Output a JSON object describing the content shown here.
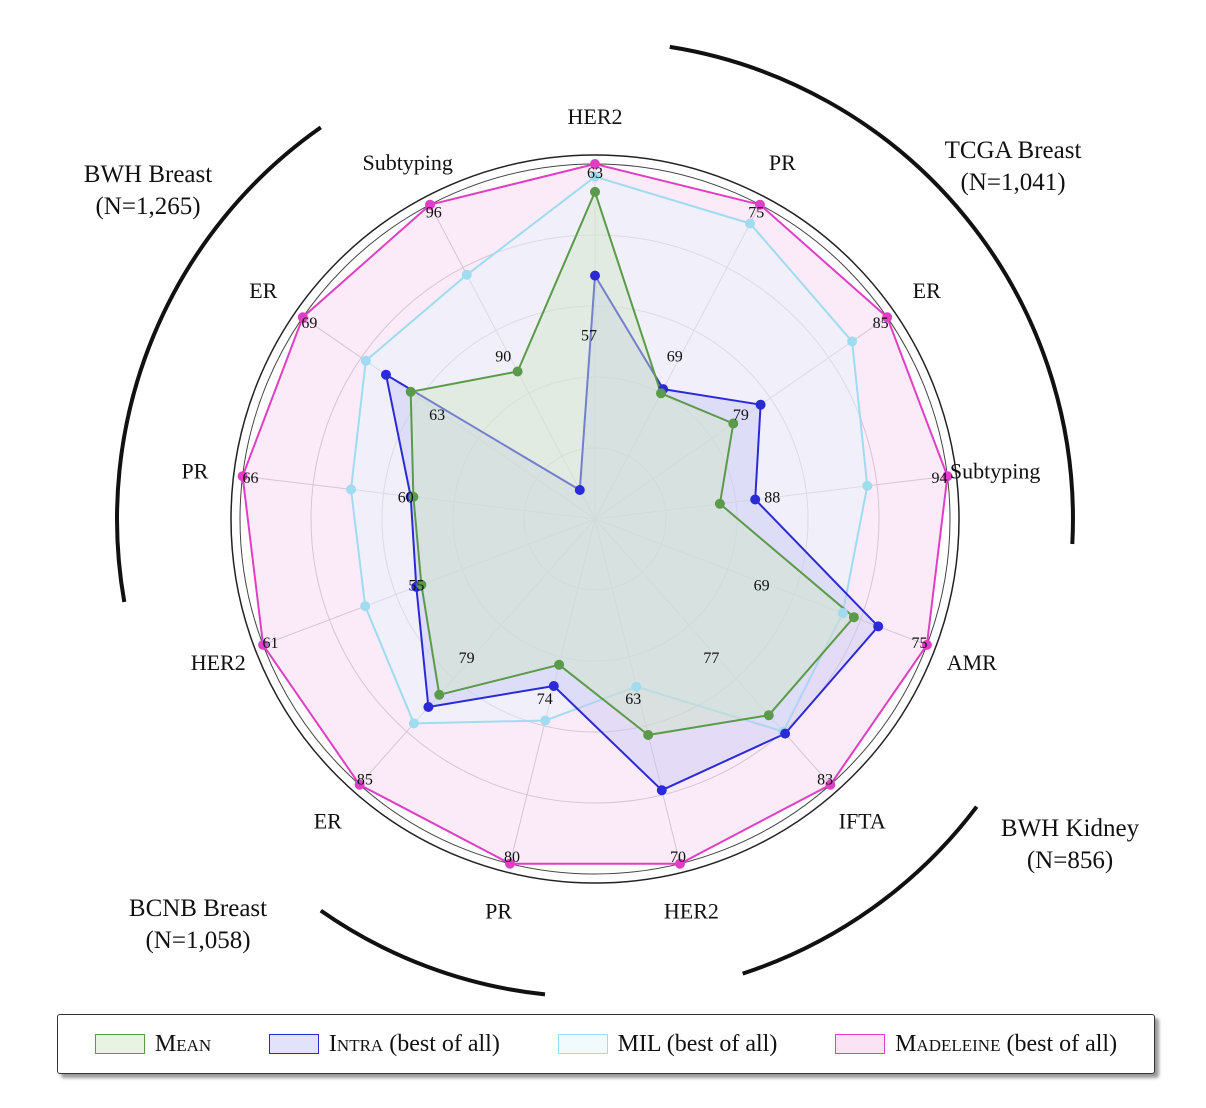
{
  "chart_data": {
    "type": "radar",
    "axes": [
      {
        "label": "HER2",
        "max_label": "63",
        "mid_label": "57",
        "min": 49,
        "max": 63
      },
      {
        "label": "PR",
        "max_label": "75",
        "mid_label": "69",
        "min": 60,
        "max": 75
      },
      {
        "label": "ER",
        "max_label": "85",
        "mid_label": "79",
        "min": 70,
        "max": 85
      },
      {
        "label": "Subtyping",
        "max_label": "94",
        "mid_label": "88",
        "min": 83,
        "max": 94
      },
      {
        "label": "AMR",
        "max_label": "75",
        "mid_label": "69",
        "min": 60,
        "max": 75
      },
      {
        "label": "IFTA",
        "max_label": "83",
        "mid_label": "77",
        "min": 70,
        "max": 83
      },
      {
        "label": "HER2",
        "max_label": "70",
        "mid_label": "63",
        "min": 55,
        "max": 70
      },
      {
        "label": "PR",
        "max_label": "80",
        "mid_label": "74",
        "min": 67,
        "max": 80
      },
      {
        "label": "ER",
        "max_label": "85",
        "mid_label": "79",
        "min": 72,
        "max": 85
      },
      {
        "label": "HER2",
        "max_label": "61",
        "mid_label": "55",
        "min": 48,
        "max": 61
      },
      {
        "label": "PR",
        "max_label": "66",
        "mid_label": "60",
        "min": 53,
        "max": 66
      },
      {
        "label": "ER",
        "max_label": "69",
        "mid_label": "63",
        "min": 56,
        "max": 69
      },
      {
        "label": "Subtyping",
        "max_label": "96",
        "mid_label": "90",
        "min": 83,
        "max": 96
      }
    ],
    "series": [
      {
        "name": "Mean",
        "color": "#5a9a4a",
        "fill": "#cfe6c4",
        "values": [
          61.9,
          66.0,
          77.1,
          86.9,
          71.7,
          79.6,
          64.4,
          72.5,
          80.6,
          54.8,
          59.7,
          64.2,
          89.1
        ]
      },
      {
        "name": "Intra (best of all)",
        "color": "#2a2ad6",
        "fill": "#c8c8f4",
        "values": [
          58.6,
          66.2,
          78.5,
          88.0,
          72.8,
          80.5,
          66.8,
          73.3,
          81.2,
          55.0,
          59.8,
          65.3,
          84.2
        ]
      },
      {
        "name": "MIL (best of all)",
        "color": "#9fdcf0",
        "fill": "#e4f5fa",
        "values": [
          62.5,
          74.1,
          83.2,
          91.5,
          71.2,
          80.4,
          62.3,
          74.6,
          82.0,
          57.0,
          62.0,
          66.2,
          93.1
        ]
      },
      {
        "name": "Madeleine (best of all)",
        "color": "#e03ec4",
        "fill": "#f6d3ef",
        "values": [
          63.0,
          75.0,
          85.0,
          94.0,
          75.0,
          83.0,
          70.0,
          80.0,
          85.0,
          61.0,
          66.0,
          69.0,
          96.0
        ]
      }
    ],
    "groups": [
      {
        "name": "TCGA Breast",
        "n": "(N=1,041)"
      },
      {
        "name": "BWH Kidney",
        "n": "(N=856)"
      },
      {
        "name": "BCNB Breast",
        "n": "(N=1,058)"
      },
      {
        "name": "BWH Breast",
        "n": "(N=1,265)"
      }
    ],
    "legend": [
      {
        "name_sc": "Mean",
        "suffix": ""
      },
      {
        "name_sc": "Intra",
        "suffix": " (best of all)"
      },
      {
        "name_sc": "",
        "suffix": "MIL (best of all)"
      },
      {
        "name_sc": "Madeleine",
        "suffix": " (best of all)"
      }
    ],
    "legend_placement": "bottom"
  }
}
